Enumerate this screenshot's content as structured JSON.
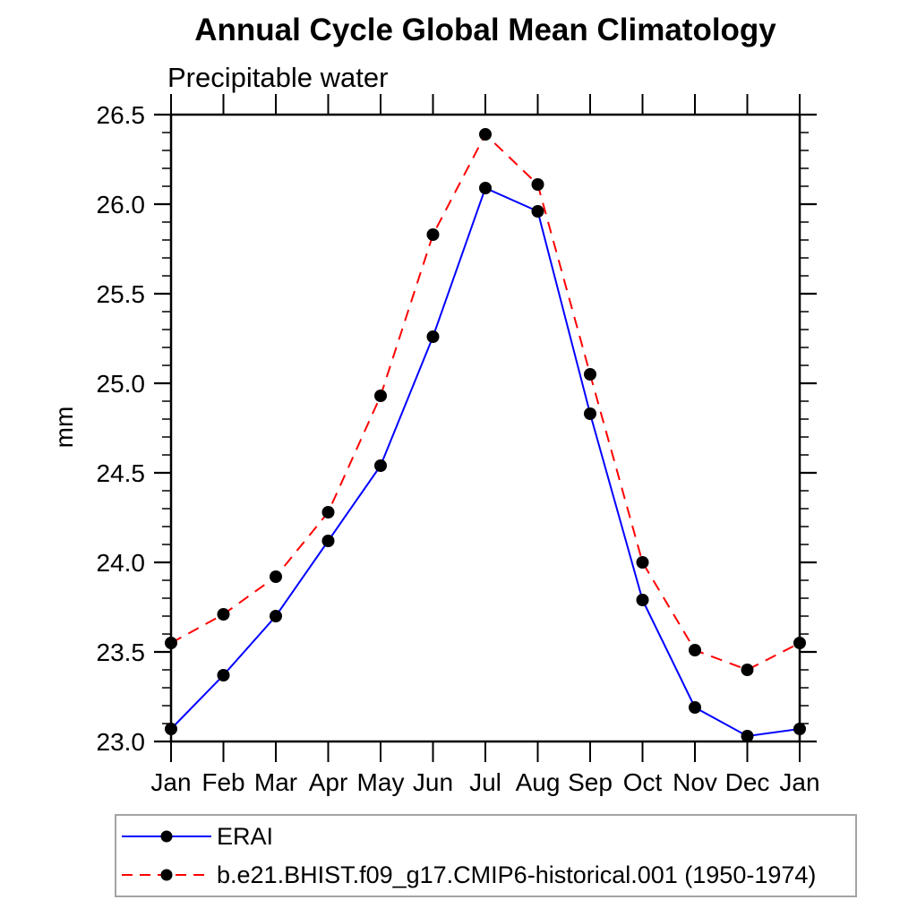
{
  "chart": {
    "title": "Annual Cycle Global Mean Climatology",
    "subtitle": "Precipitable water",
    "ylabel": "mm"
  },
  "chart_data": {
    "type": "line",
    "title": "Annual Cycle Global Mean Climatology",
    "subtitle": "Precipitable water",
    "xlabel": "",
    "ylabel": "mm",
    "categories": [
      "Jan",
      "Feb",
      "Mar",
      "Apr",
      "May",
      "Jun",
      "Jul",
      "Aug",
      "Sep",
      "Oct",
      "Nov",
      "Dec",
      "Jan"
    ],
    "ylim": [
      23.0,
      26.5
    ],
    "ytick_major_step": 0.5,
    "ytick_minor_step": 0.1,
    "ytick_labels": [
      "23.0",
      "23.5",
      "24.0",
      "24.5",
      "25.0",
      "25.5",
      "26.0",
      "26.5"
    ],
    "grid": false,
    "legend_position": "bottom",
    "frame_color": "#000000",
    "marker_color": "#000000",
    "series": [
      {
        "name": "ERAI",
        "color": "#0000ff",
        "style": "solid",
        "marker": "filled-circle",
        "values": [
          23.07,
          23.37,
          23.7,
          24.12,
          24.54,
          25.26,
          26.09,
          25.96,
          24.83,
          23.79,
          23.19,
          23.03,
          23.07
        ]
      },
      {
        "name": "b.e21.BHIST.f09_g17.CMIP6-historical.001 (1950-1974)",
        "color": "#ff0000",
        "style": "dashed",
        "marker": "filled-circle",
        "values": [
          23.55,
          23.71,
          23.92,
          24.28,
          24.93,
          25.83,
          26.39,
          26.11,
          25.05,
          24.0,
          23.51,
          23.4,
          23.55
        ]
      }
    ]
  }
}
